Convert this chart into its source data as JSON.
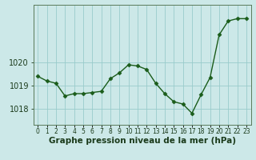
{
  "x": [
    0,
    1,
    2,
    3,
    4,
    5,
    6,
    7,
    8,
    9,
    10,
    11,
    12,
    13,
    14,
    15,
    16,
    17,
    18,
    19,
    20,
    21,
    22,
    23
  ],
  "y": [
    1019.4,
    1019.2,
    1019.1,
    1018.55,
    1018.65,
    1018.65,
    1018.7,
    1018.75,
    1019.3,
    1019.55,
    1019.9,
    1019.85,
    1019.7,
    1019.1,
    1018.65,
    1018.3,
    1018.2,
    1017.8,
    1018.6,
    1019.35,
    1021.2,
    1021.8,
    1021.9,
    1021.9
  ],
  "line_color": "#1a5c1a",
  "marker": "D",
  "marker_size": 2.5,
  "background_color": "#cce8e8",
  "grid_color": "#99cccc",
  "ylabel_ticks": [
    1018,
    1019,
    1020
  ],
  "ylim": [
    1017.3,
    1022.5
  ],
  "xlim": [
    -0.5,
    23.5
  ],
  "xtick_labels": [
    "0",
    "1",
    "2",
    "3",
    "4",
    "5",
    "6",
    "7",
    "8",
    "9",
    "10",
    "11",
    "12",
    "13",
    "14",
    "15",
    "16",
    "17",
    "18",
    "19",
    "20",
    "21",
    "22",
    "23"
  ],
  "xlabel": "Graphe pression niveau de la mer (hPa)",
  "xlabel_fontsize": 7.5,
  "axis_label_color": "#1a3a1a",
  "ytick_fontsize": 7.0,
  "xtick_fontsize": 5.5,
  "line_width": 1.0,
  "border_color": "#5a7a5a"
}
